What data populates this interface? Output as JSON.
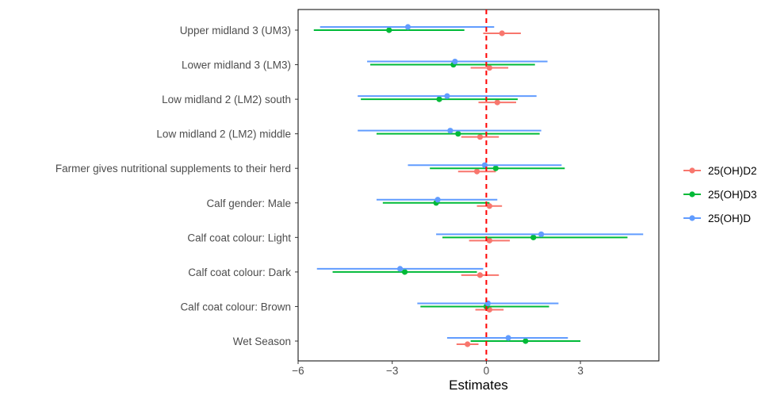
{
  "chart_data": {
    "type": "forest",
    "xlabel": "Estimates",
    "xlim": [
      -6,
      5.5
    ],
    "xticks": [
      -6,
      -3,
      0,
      3
    ],
    "xtick_labels": [
      "−6",
      "−3",
      "0",
      "3"
    ],
    "reference_line": 0,
    "reference_color": "#ff0000",
    "legend_position": "right",
    "categories": [
      "Upper midland 3 (UM3)",
      "Lower midland 3 (LM3)",
      "Low midland 2 (LM2) south",
      "Low midland 2 (LM2) middle",
      "Farmer gives nutritional supplements to their herd",
      "Calf gender: Male",
      "Calf coat colour: Light",
      "Calf coat colour: Dark",
      "Calf coat colour: Brown",
      "Wet Season"
    ],
    "series": [
      {
        "name": "25(OH)D2",
        "color": "#f8766d",
        "points": [
          {
            "est": 0.5,
            "lo": -0.1,
            "hi": 1.1
          },
          {
            "est": 0.1,
            "lo": -0.5,
            "hi": 0.7
          },
          {
            "est": 0.35,
            "lo": -0.25,
            "hi": 0.95
          },
          {
            "est": -0.2,
            "lo": -0.8,
            "hi": 0.4
          },
          {
            "est": -0.3,
            "lo": -0.9,
            "hi": 0.3
          },
          {
            "est": 0.1,
            "lo": -0.3,
            "hi": 0.5
          },
          {
            "est": 0.1,
            "lo": -0.55,
            "hi": 0.75
          },
          {
            "est": -0.2,
            "lo": -0.8,
            "hi": 0.4
          },
          {
            "est": 0.1,
            "lo": -0.35,
            "hi": 0.55
          },
          {
            "est": -0.6,
            "lo": -0.95,
            "hi": -0.25
          }
        ]
      },
      {
        "name": "25(OH)D3",
        "color": "#00ba38",
        "points": [
          {
            "est": -3.1,
            "lo": -5.5,
            "hi": -0.7
          },
          {
            "est": -1.05,
            "lo": -3.7,
            "hi": 1.55
          },
          {
            "est": -1.5,
            "lo": -4.0,
            "hi": 1.0
          },
          {
            "est": -0.9,
            "lo": -3.5,
            "hi": 1.7
          },
          {
            "est": 0.3,
            "lo": -1.8,
            "hi": 2.5
          },
          {
            "est": -1.6,
            "lo": -3.3,
            "hi": 0.1
          },
          {
            "est": 1.5,
            "lo": -1.4,
            "hi": 4.5
          },
          {
            "est": -2.6,
            "lo": -4.9,
            "hi": -0.3
          },
          {
            "est": 0.0,
            "lo": -2.1,
            "hi": 2.0
          },
          {
            "est": 1.25,
            "lo": -0.5,
            "hi": 3.0
          }
        ]
      },
      {
        "name": "25(OH)D",
        "color": "#619cff",
        "points": [
          {
            "est": -2.5,
            "lo": -5.3,
            "hi": 0.25
          },
          {
            "est": -1.0,
            "lo": -3.8,
            "hi": 1.95
          },
          {
            "est": -1.25,
            "lo": -4.1,
            "hi": 1.6
          },
          {
            "est": -1.15,
            "lo": -4.1,
            "hi": 1.75
          },
          {
            "est": -0.05,
            "lo": -2.5,
            "hi": 2.4
          },
          {
            "est": -1.55,
            "lo": -3.5,
            "hi": 0.35
          },
          {
            "est": 1.75,
            "lo": -1.6,
            "hi": 5.0
          },
          {
            "est": -2.75,
            "lo": -5.4,
            "hi": -0.1
          },
          {
            "est": 0.05,
            "lo": -2.2,
            "hi": 2.3
          },
          {
            "est": 0.7,
            "lo": -1.25,
            "hi": 2.6
          }
        ]
      }
    ]
  }
}
